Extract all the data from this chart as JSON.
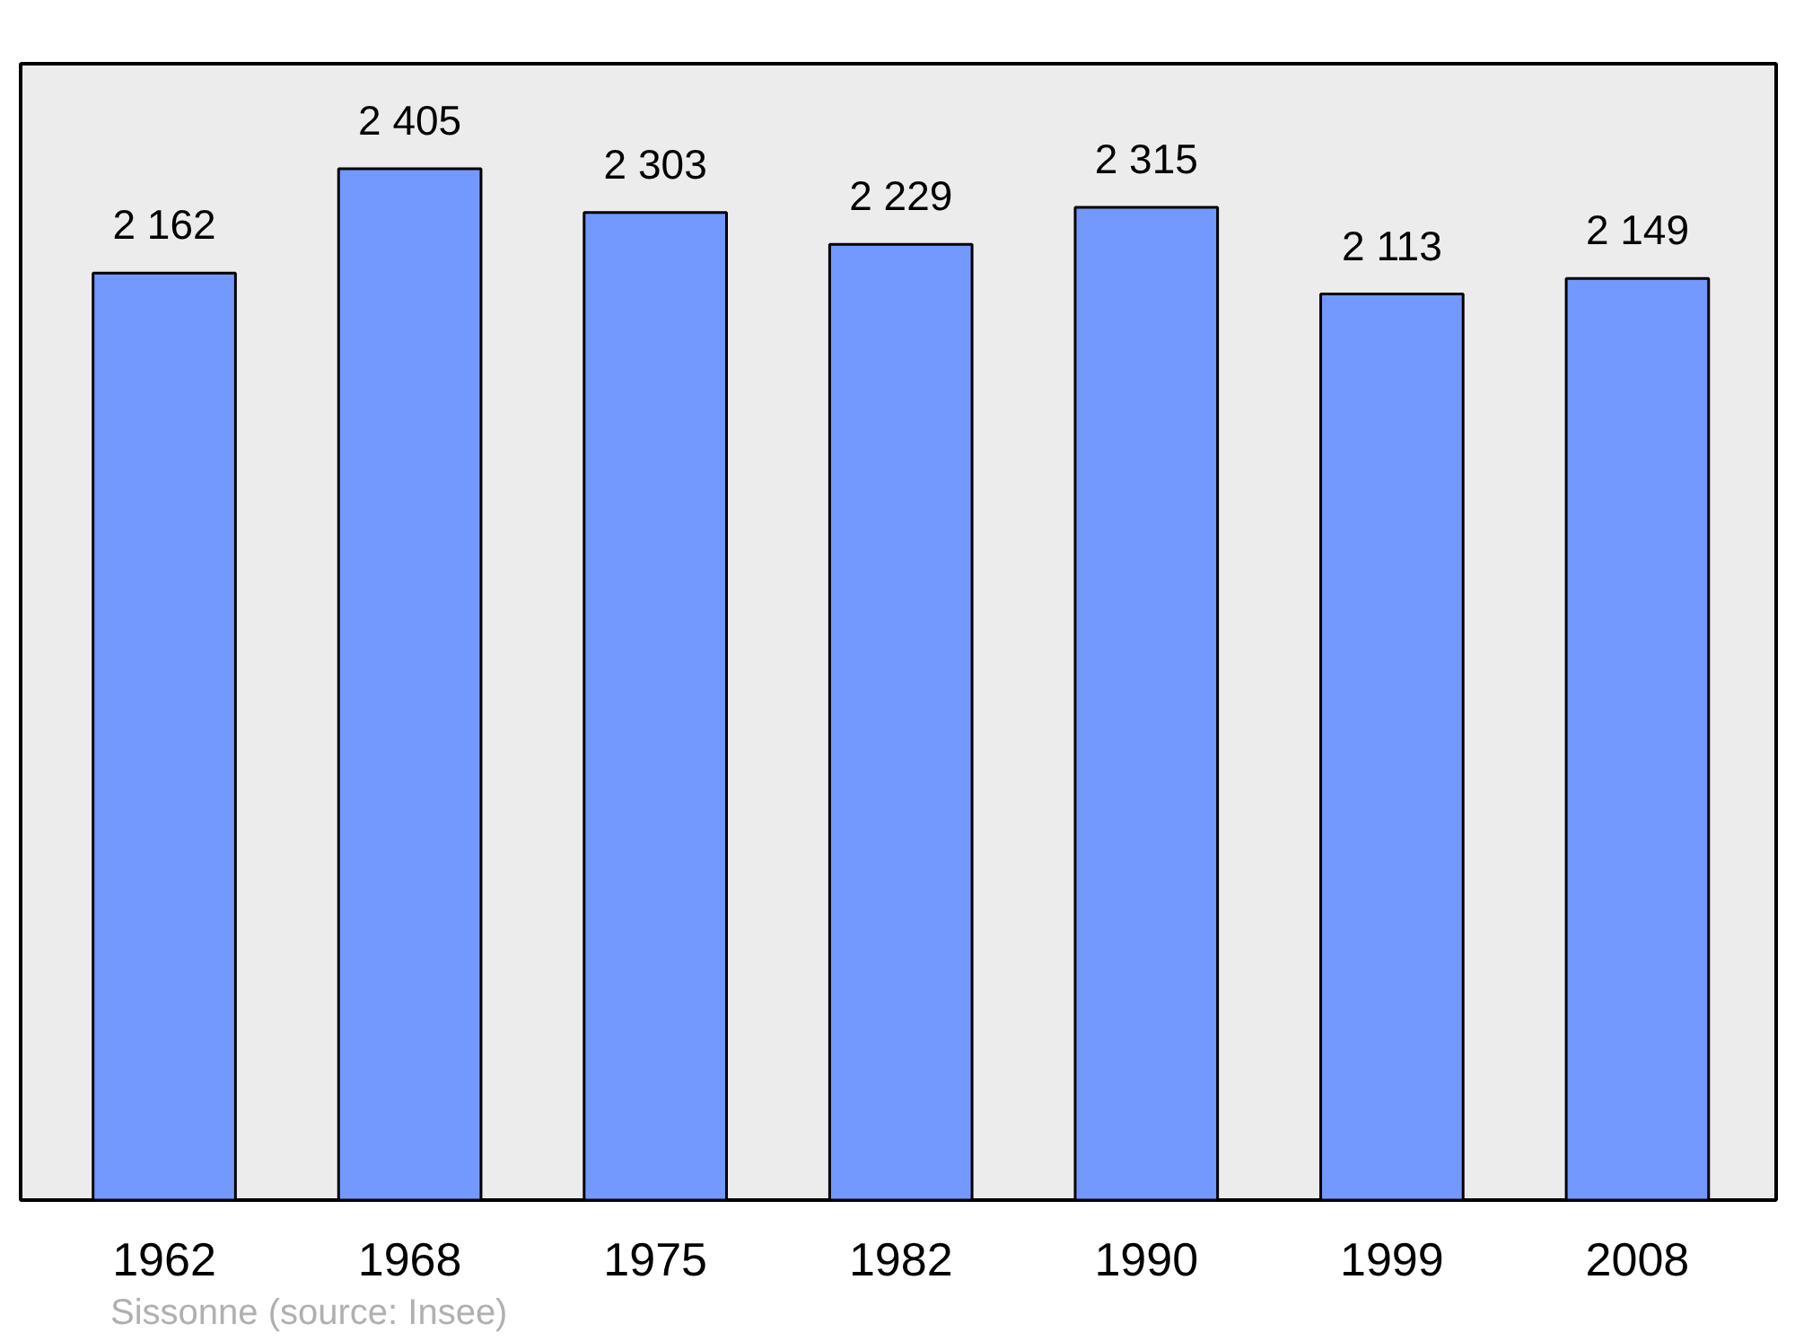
{
  "chart_data": {
    "type": "bar",
    "categories": [
      "1962",
      "1968",
      "1975",
      "1982",
      "1990",
      "1999",
      "2008"
    ],
    "values": [
      2162,
      2405,
      2303,
      2229,
      2315,
      2113,
      2149
    ],
    "color": "#7399ff",
    "data_labels": true,
    "value_labels": [
      "2 162",
      "2 405",
      "2 303",
      "2 229",
      "2 315",
      "2 113",
      "2 149"
    ],
    "ylim": [
      0,
      2650
    ],
    "tick_labels": "x",
    "grid": false,
    "annotations": [
      "Sissonne    (source: Insee)"
    ]
  }
}
